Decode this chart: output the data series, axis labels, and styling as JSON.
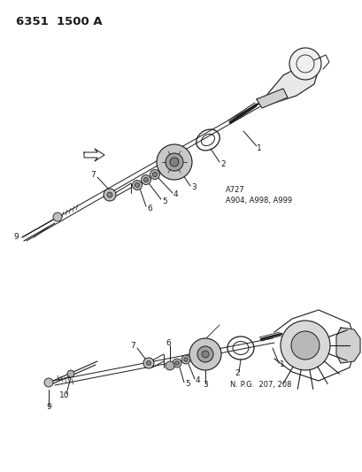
{
  "title": "6351  1500 A",
  "bg_color": "#ffffff",
  "line_color": "#1a1a1a",
  "text_color": "#1a1a1a",
  "annotation1": "A727\nA904, A998, A999",
  "annotation2": "N. P.G.  207, 208",
  "figsize": [
    4.1,
    5.33
  ],
  "dpi": 100
}
